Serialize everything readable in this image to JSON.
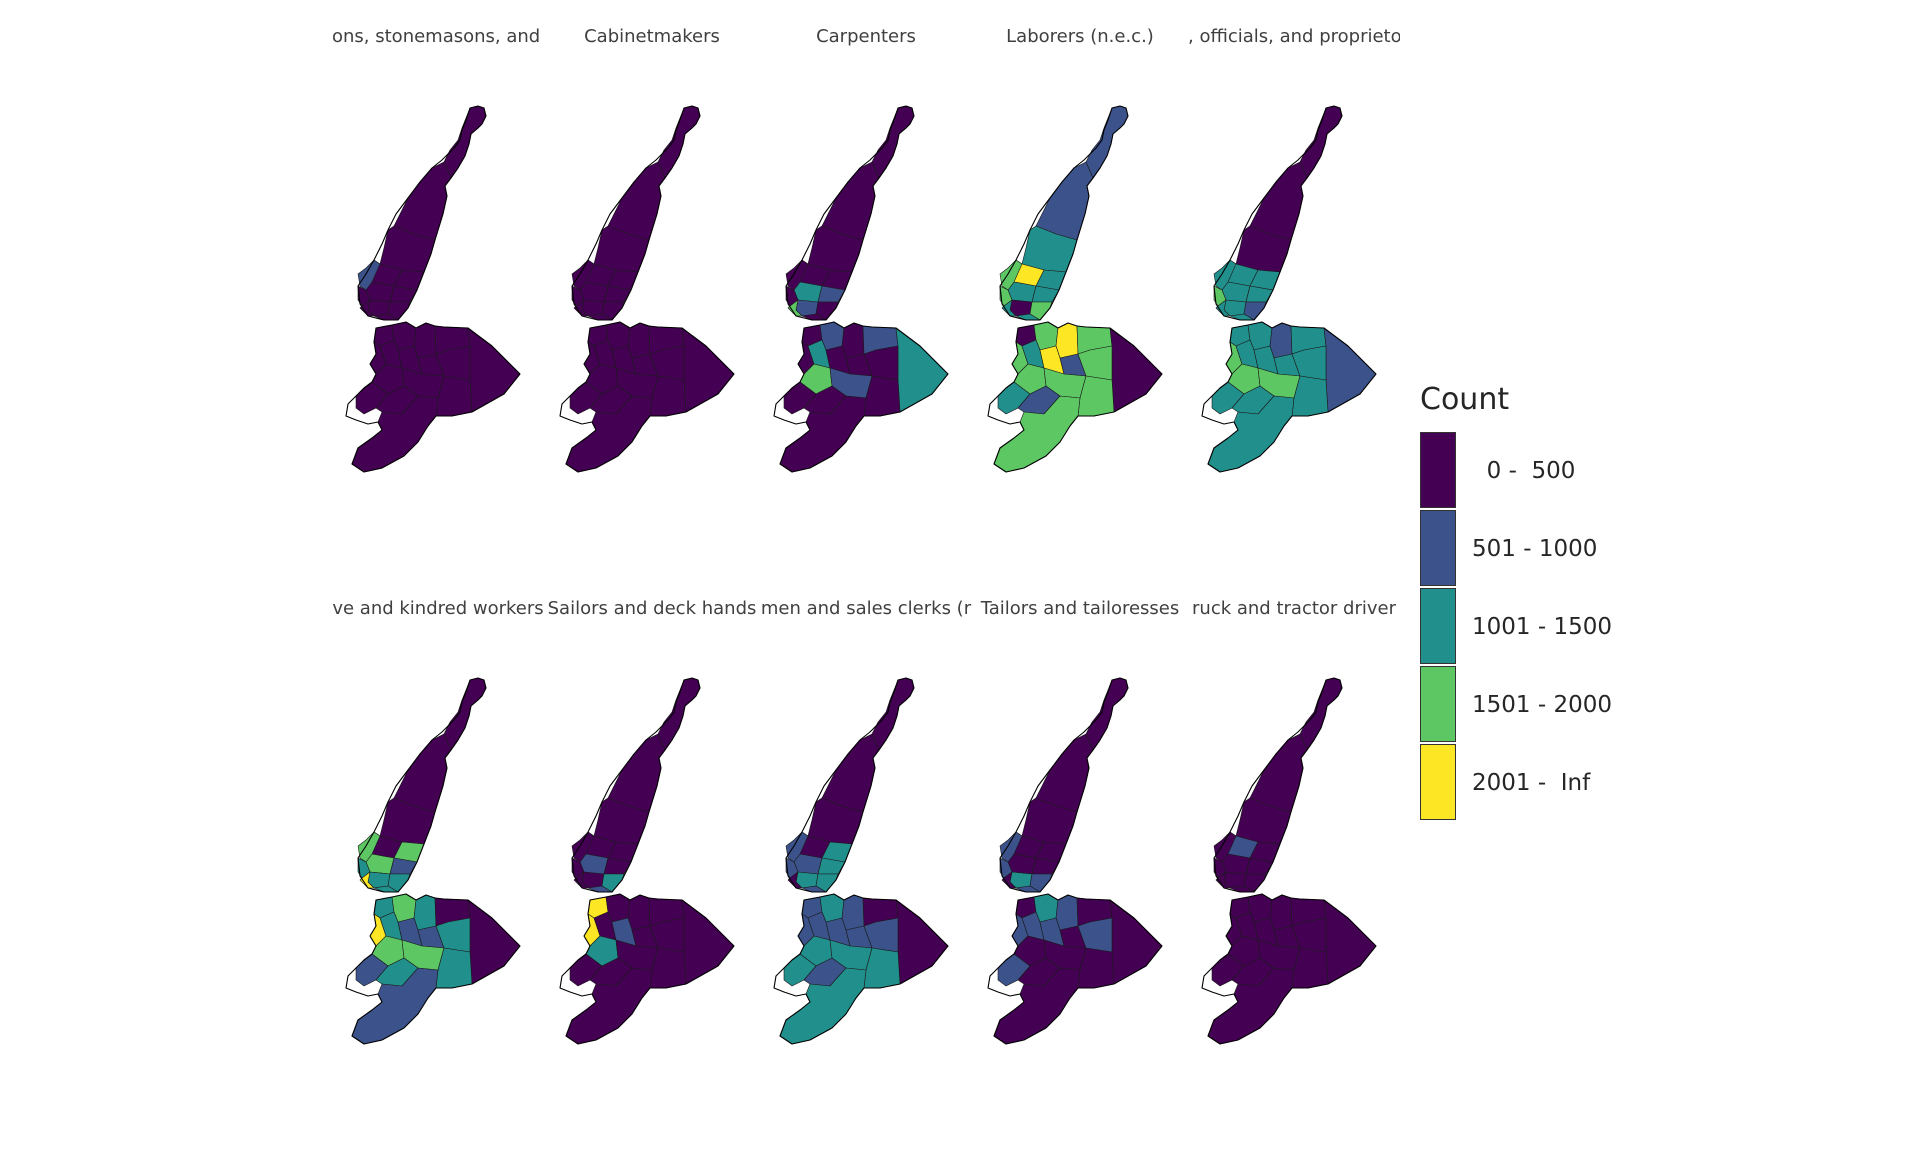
{
  "panels": [
    {
      "title": "ons, stonemasons, and t",
      "fills": [
        "c0",
        "c0",
        "c0",
        "c0",
        "c0",
        "c0",
        "c1",
        "c0",
        "c0",
        "c0",
        "c0",
        "c0",
        "c0",
        "c0",
        "c0",
        "c0",
        "c0",
        "c0",
        "c0",
        "c0",
        "c0",
        "c0",
        "c0",
        "c0",
        "c0",
        "c0",
        "c0",
        "c0",
        "c0"
      ]
    },
    {
      "title": "Cabinetmakers",
      "fills": [
        "c0",
        "c0",
        "c0",
        "c0",
        "c0",
        "c0",
        "c0",
        "c0",
        "c0",
        "c0",
        "c0",
        "c0",
        "c0",
        "c0",
        "c0",
        "c0",
        "c0",
        "c0",
        "c0",
        "c0",
        "c0",
        "c0",
        "c0",
        "c0",
        "c0",
        "c0",
        "c0",
        "c0",
        "c0"
      ]
    },
    {
      "title": "Carpenters",
      "fills": [
        "c0",
        "c0",
        "c0",
        "c0",
        "c0",
        "c2",
        "c0",
        "c1",
        "c0",
        "c1",
        "c0",
        "c3",
        "c0",
        "c0",
        "c1",
        "c0",
        "c1",
        "c2",
        "c0",
        "c2",
        "c0",
        "c0",
        "c0",
        "c3",
        "c1",
        "c0",
        "c0",
        "c0",
        "c0"
      ]
    },
    {
      "title": "Laborers (n.e.c.)",
      "fills": [
        "c1",
        "c1",
        "c2",
        "c4",
        "c2",
        "c2",
        "c3",
        "c2",
        "c3",
        "c0",
        "c3",
        "c2",
        "c2",
        "c0",
        "c3",
        "c4",
        "c3",
        "c0",
        "c3",
        "c2",
        "c4",
        "c1",
        "c3",
        "c3",
        "c3",
        "c3",
        "c2",
        "c1",
        "c3"
      ]
    },
    {
      "title": ", officials, and proprieto",
      "fills": [
        "c0",
        "c0",
        "c0",
        "c2",
        "c2",
        "c2",
        "c2",
        "c2",
        "c3",
        "c2",
        "c1",
        "c2",
        "c2",
        "c2",
        "c2",
        "c1",
        "c2",
        "c1",
        "c3",
        "c2",
        "c2",
        "c2",
        "c2",
        "c3",
        "c3",
        "c2",
        "c2",
        "c2",
        "c2"
      ]
    },
    {
      "title": "ve and kindred workers",
      "fills": [
        "c0",
        "c0",
        "c0",
        "c0",
        "c3",
        "c3",
        "c3",
        "c1",
        "c2",
        "c2",
        "c2",
        "c4",
        "c2",
        "c2",
        "c3",
        "c2",
        "c0",
        "c0",
        "c4",
        "c2",
        "c1",
        "c1",
        "c2",
        "c3",
        "c3",
        "c2",
        "c1",
        "c2",
        "c1"
      ]
    },
    {
      "title": "Sailors and deck hands",
      "fills": [
        "c0",
        "c0",
        "c0",
        "c0",
        "c0",
        "c1",
        "c0",
        "c0",
        "c0",
        "c0",
        "c2",
        "c0",
        "c1",
        "c4",
        "c0",
        "c0",
        "c0",
        "c0",
        "c4",
        "c0",
        "c1",
        "c0",
        "c0",
        "c2",
        "c0",
        "c0",
        "c0",
        "c0",
        "c0"
      ]
    },
    {
      "title": "men and sales clerks (r",
      "fills": [
        "c0",
        "c0",
        "c0",
        "c0",
        "c2",
        "c1",
        "c1",
        "c2",
        "c1",
        "c2",
        "c2",
        "c0",
        "c1",
        "c1",
        "c2",
        "c1",
        "c0",
        "c0",
        "c1",
        "c1",
        "c1",
        "c1",
        "c1",
        "c2",
        "c2",
        "c2",
        "c2",
        "c1",
        "c2"
      ]
    },
    {
      "title": "Tailors and tailoresses",
      "fills": [
        "c0",
        "c0",
        "c0",
        "c0",
        "c0",
        "c0",
        "c1",
        "c0",
        "c1",
        "c2",
        "c1",
        "c0",
        "c1",
        "c0",
        "c2",
        "c1",
        "c0",
        "c0",
        "c1",
        "c1",
        "c1",
        "c0",
        "c1",
        "c0",
        "c0",
        "c0",
        "c1",
        "c0",
        "c0"
      ]
    },
    {
      "title": "ruck and tractor driver",
      "fills": [
        "c0",
        "c0",
        "c0",
        "c1",
        "c0",
        "c0",
        "c0",
        "c0",
        "c0",
        "c0",
        "c0",
        "c0",
        "c0",
        "c0",
        "c0",
        "c0",
        "c0",
        "c0",
        "c0",
        "c0",
        "c0",
        "c0",
        "c0",
        "c0",
        "c0",
        "c0",
        "c0",
        "c0",
        "c0"
      ]
    }
  ],
  "legend": {
    "title": "Count",
    "classes": [
      {
        "key": "c0",
        "label": "  0 -  500",
        "color": "#440154"
      },
      {
        "key": "c1",
        "label": "501 - 1000",
        "color": "#3b528b"
      },
      {
        "key": "c2",
        "label": "1001 - 1500",
        "color": "#21908c"
      },
      {
        "key": "c3",
        "label": "1501 - 2000",
        "color": "#5dc863"
      },
      {
        "key": "c4",
        "label": "2001 -  Inf",
        "color": "#fde725"
      }
    ]
  }
}
